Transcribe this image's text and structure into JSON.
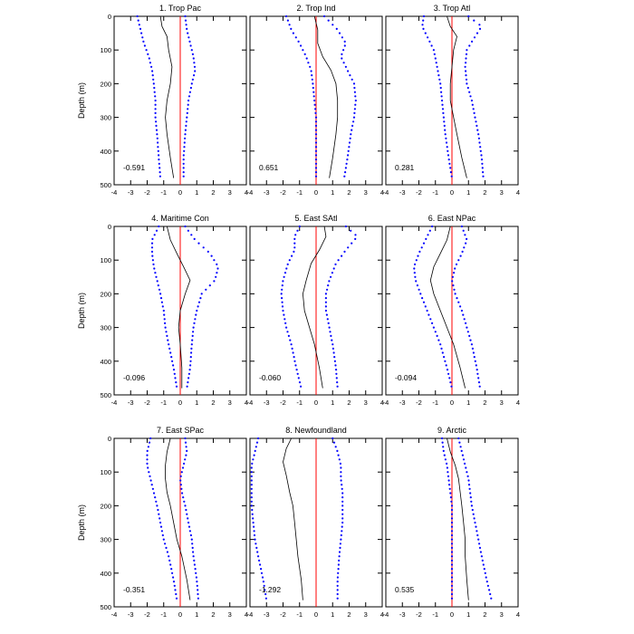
{
  "chart_data": {
    "type": "line",
    "xlim": [
      -4,
      4
    ],
    "ylim": [
      0,
      500
    ],
    "y_inverted": true,
    "x_ticks": [
      -4,
      -3,
      -2,
      -1,
      0,
      1,
      2,
      3,
      4
    ],
    "y_ticks": [
      0,
      100,
      200,
      300,
      400,
      500
    ],
    "ylabel": "Depth (m)",
    "xlabel": "",
    "grid": false,
    "reference_line_x": 0,
    "colors": {
      "mean": "#000000",
      "bounds": "#0000ff",
      "zero_line": "#ff0000"
    },
    "panels": [
      {
        "title": "1. Trop Pac",
        "value_label": "-0.591",
        "mean": {
          "x": [
            -1.2,
            -1.1,
            -0.8,
            -0.7,
            -0.5,
            -0.6,
            -0.8,
            -0.9,
            -0.8,
            -0.6,
            -0.4
          ],
          "depth": [
            0,
            30,
            60,
            100,
            150,
            200,
            250,
            300,
            350,
            420,
            480
          ]
        },
        "lower": {
          "x": [
            -2.6,
            -2.4,
            -2.2,
            -1.9,
            -1.7,
            -1.6,
            -1.5,
            -1.5,
            -1.4,
            -1.3,
            -1.2
          ],
          "depth": [
            0,
            40,
            80,
            120,
            160,
            200,
            250,
            300,
            350,
            420,
            480
          ]
        },
        "upper": {
          "x": [
            0.3,
            0.4,
            0.6,
            0.8,
            0.9,
            0.7,
            0.5,
            0.4,
            0.3,
            0.2,
            0.2
          ],
          "depth": [
            0,
            40,
            80,
            120,
            160,
            200,
            250,
            300,
            350,
            420,
            480
          ]
        }
      },
      {
        "title": "2. Trop Ind",
        "value_label": "0.651",
        "mean": {
          "x": [
            -0.1,
            0.1,
            0.1,
            0.4,
            0.9,
            1.2,
            1.3,
            1.3,
            1.2,
            1.0,
            0.8
          ],
          "depth": [
            0,
            40,
            80,
            120,
            160,
            200,
            250,
            300,
            350,
            420,
            480
          ]
        },
        "lower": {
          "x": [
            -1.8,
            -1.5,
            -1.0,
            -0.6,
            -0.3,
            -0.2,
            -0.1,
            0.0,
            0.0,
            0.0,
            0.0
          ],
          "depth": [
            0,
            40,
            80,
            120,
            160,
            200,
            250,
            300,
            350,
            420,
            480
          ]
        },
        "upper": {
          "x": [
            0.5,
            1.3,
            1.8,
            1.5,
            1.9,
            2.3,
            2.4,
            2.3,
            2.1,
            1.9,
            1.7
          ],
          "depth": [
            0,
            40,
            80,
            120,
            160,
            200,
            250,
            300,
            350,
            420,
            480
          ]
        }
      },
      {
        "title": "3. Trop Atl",
        "value_label": "0.281",
        "mean": {
          "x": [
            -0.3,
            -0.1,
            0.3,
            0.1,
            0.0,
            -0.1,
            -0.1,
            0.1,
            0.3,
            0.6,
            0.9
          ],
          "depth": [
            0,
            30,
            60,
            100,
            150,
            200,
            250,
            300,
            350,
            420,
            480
          ]
        },
        "lower": {
          "x": [
            -1.7,
            -1.8,
            -1.5,
            -1.1,
            -0.9,
            -0.7,
            -0.6,
            -0.5,
            -0.4,
            -0.2,
            0.0
          ],
          "depth": [
            0,
            30,
            60,
            100,
            150,
            200,
            250,
            300,
            350,
            420,
            480
          ]
        },
        "upper": {
          "x": [
            1.0,
            1.8,
            1.4,
            0.9,
            0.8,
            0.9,
            1.2,
            1.4,
            1.6,
            1.8,
            1.9
          ],
          "depth": [
            0,
            30,
            60,
            100,
            150,
            200,
            250,
            300,
            350,
            420,
            480
          ]
        }
      },
      {
        "title": "4. Maritime Con",
        "value_label": "-0.096",
        "mean": {
          "x": [
            -0.8,
            -0.6,
            -0.2,
            0.2,
            0.6,
            0.3,
            0.0,
            -0.1,
            0.0,
            0.1,
            0.1
          ],
          "depth": [
            0,
            40,
            80,
            120,
            160,
            200,
            250,
            300,
            350,
            420,
            480
          ]
        },
        "lower": {
          "x": [
            -1.3,
            -1.7,
            -1.7,
            -1.6,
            -1.4,
            -1.2,
            -1.0,
            -0.9,
            -0.7,
            -0.4,
            -0.2
          ],
          "depth": [
            0,
            40,
            80,
            120,
            160,
            200,
            250,
            300,
            350,
            420,
            480
          ]
        },
        "upper": {
          "x": [
            0.3,
            0.9,
            1.8,
            2.3,
            2.1,
            1.3,
            1.0,
            0.8,
            0.7,
            0.6,
            0.4
          ],
          "depth": [
            0,
            40,
            80,
            120,
            160,
            200,
            250,
            300,
            350,
            420,
            480
          ]
        }
      },
      {
        "title": "5. East SAtl",
        "value_label": "-0.060",
        "mean": {
          "x": [
            0.5,
            0.6,
            0.2,
            -0.3,
            -0.6,
            -0.8,
            -0.7,
            -0.4,
            -0.1,
            0.2,
            0.4
          ],
          "depth": [
            0,
            30,
            70,
            110,
            160,
            200,
            250,
            300,
            350,
            420,
            480
          ]
        },
        "lower": {
          "x": [
            -1.0,
            -1.3,
            -1.3,
            -1.7,
            -2.0,
            -2.1,
            -2.0,
            -1.8,
            -1.5,
            -1.2,
            -0.9
          ],
          "depth": [
            0,
            30,
            70,
            110,
            160,
            200,
            250,
            300,
            350,
            420,
            480
          ]
        },
        "upper": {
          "x": [
            1.8,
            2.5,
            1.8,
            1.2,
            0.8,
            0.6,
            0.6,
            0.8,
            1.0,
            1.2,
            1.3
          ],
          "depth": [
            0,
            30,
            70,
            110,
            160,
            200,
            250,
            300,
            350,
            420,
            480
          ]
        }
      },
      {
        "title": "6. East NPac",
        "value_label": "-0.094",
        "mean": {
          "x": [
            -0.1,
            -0.3,
            -0.7,
            -1.1,
            -1.3,
            -1.1,
            -0.7,
            -0.3,
            0.1,
            0.5,
            0.8
          ],
          "depth": [
            0,
            40,
            80,
            120,
            160,
            200,
            250,
            300,
            350,
            420,
            480
          ]
        },
        "lower": {
          "x": [
            -1.2,
            -1.6,
            -2.0,
            -2.3,
            -2.2,
            -1.9,
            -1.5,
            -1.1,
            -0.7,
            -0.3,
            0.0
          ],
          "depth": [
            0,
            40,
            80,
            120,
            160,
            200,
            250,
            300,
            350,
            420,
            480
          ]
        },
        "upper": {
          "x": [
            0.6,
            0.9,
            0.6,
            0.2,
            0.0,
            0.2,
            0.6,
            0.9,
            1.2,
            1.5,
            1.7
          ],
          "depth": [
            0,
            40,
            80,
            120,
            160,
            200,
            250,
            300,
            350,
            420,
            480
          ]
        }
      },
      {
        "title": "7. East SPac",
        "value_label": "-0.351",
        "mean": {
          "x": [
            -0.6,
            -0.8,
            -0.9,
            -0.9,
            -0.8,
            -0.6,
            -0.4,
            -0.2,
            0.1,
            0.4,
            0.6
          ],
          "depth": [
            0,
            40,
            80,
            120,
            160,
            200,
            250,
            300,
            350,
            420,
            480
          ]
        },
        "lower": {
          "x": [
            -1.8,
            -2.0,
            -2.0,
            -1.8,
            -1.6,
            -1.4,
            -1.2,
            -1.0,
            -0.7,
            -0.4,
            -0.2
          ],
          "depth": [
            0,
            40,
            80,
            120,
            160,
            200,
            250,
            300,
            350,
            420,
            480
          ]
        },
        "upper": {
          "x": [
            0.3,
            0.4,
            0.2,
            0.0,
            0.1,
            0.3,
            0.5,
            0.7,
            0.8,
            1.0,
            1.1
          ],
          "depth": [
            0,
            40,
            80,
            120,
            160,
            200,
            250,
            300,
            350,
            420,
            480
          ]
        }
      },
      {
        "title": "8. Newfoundland",
        "value_label": "-1.292",
        "mean": {
          "x": [
            -1.5,
            -1.8,
            -2.0,
            -1.8,
            -1.6,
            -1.4,
            -1.3,
            -1.2,
            -1.1,
            -0.9,
            -0.8
          ],
          "depth": [
            0,
            30,
            70,
            110,
            160,
            200,
            250,
            300,
            350,
            420,
            480
          ]
        },
        "lower": {
          "x": [
            -3.5,
            -3.7,
            -3.9,
            -3.9,
            -3.9,
            -3.9,
            -3.8,
            -3.7,
            -3.5,
            -3.2,
            -3.0
          ],
          "depth": [
            0,
            40,
            80,
            120,
            160,
            200,
            250,
            300,
            350,
            420,
            480
          ]
        },
        "upper": {
          "x": [
            1.0,
            1.3,
            1.5,
            1.5,
            1.6,
            1.6,
            1.6,
            1.5,
            1.4,
            1.3,
            1.3
          ],
          "depth": [
            0,
            40,
            80,
            120,
            160,
            200,
            250,
            300,
            350,
            420,
            480
          ]
        }
      },
      {
        "title": "9. Arctic",
        "value_label": "0.535",
        "mean": {
          "x": [
            -0.3,
            -0.1,
            0.2,
            0.4,
            0.5,
            0.6,
            0.7,
            0.8,
            0.8,
            0.9,
            1.0
          ],
          "depth": [
            0,
            40,
            80,
            120,
            160,
            200,
            250,
            300,
            350,
            420,
            480
          ]
        },
        "lower": {
          "x": [
            -0.6,
            -0.5,
            -0.3,
            -0.2,
            -0.1,
            0.0,
            0.0,
            0.0,
            0.0,
            0.0,
            0.0
          ],
          "depth": [
            0,
            40,
            80,
            120,
            160,
            200,
            250,
            300,
            350,
            420,
            480
          ]
        },
        "upper": {
          "x": [
            0.4,
            0.6,
            0.8,
            1.0,
            1.1,
            1.2,
            1.4,
            1.6,
            1.8,
            2.1,
            2.4
          ],
          "depth": [
            0,
            40,
            80,
            120,
            160,
            200,
            250,
            300,
            350,
            420,
            480
          ]
        }
      }
    ]
  }
}
